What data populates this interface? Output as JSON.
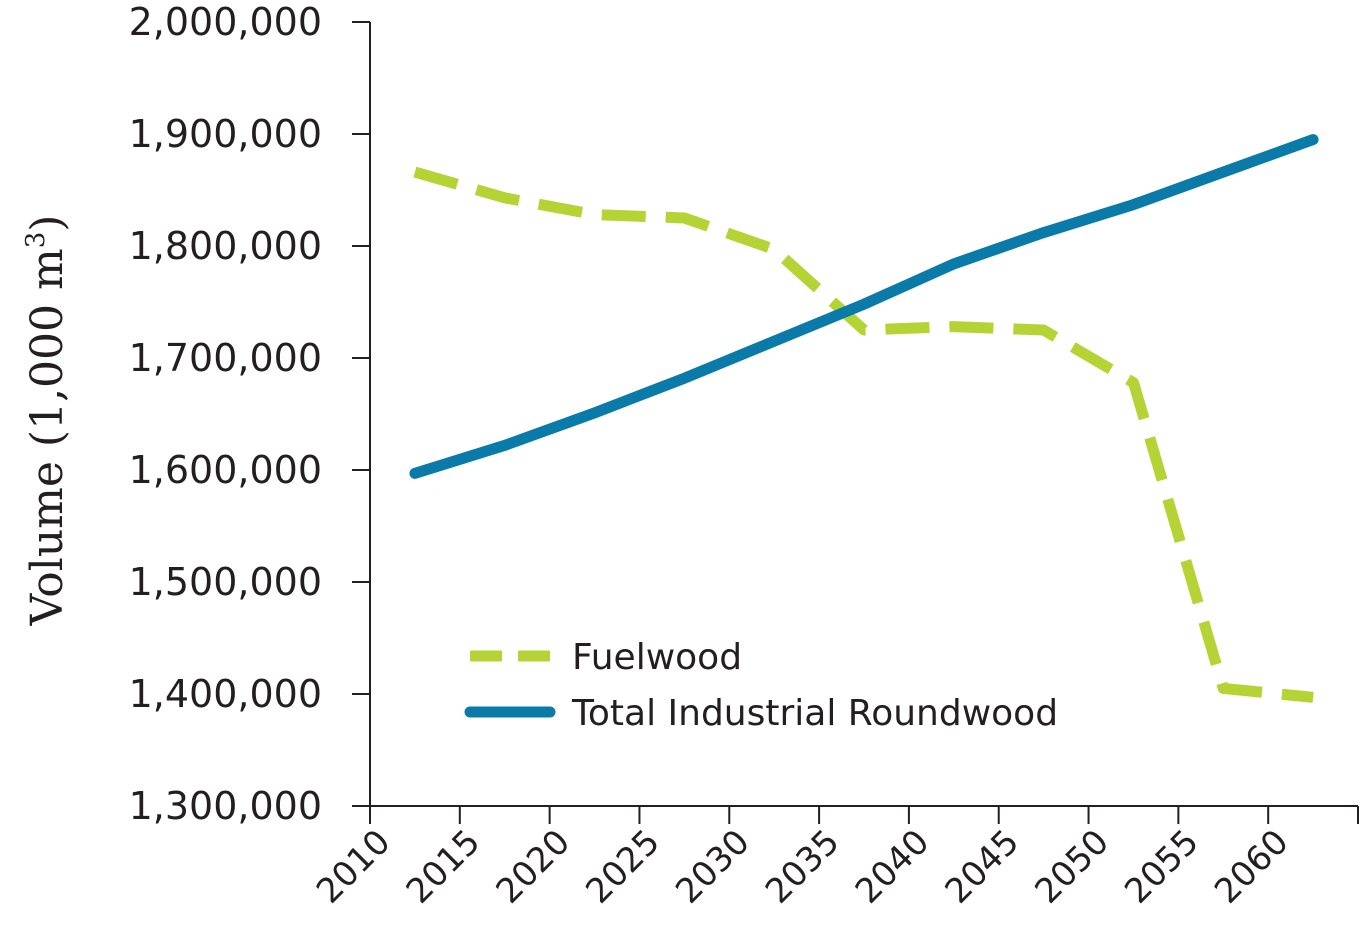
{
  "chart_data": {
    "type": "line",
    "ylabel": "Volume (1,000 m",
    "ylabel_superscript": "3",
    "ylabel_close": ")",
    "xlabel": "",
    "ylim": [
      1300000,
      2000000
    ],
    "y_ticks": [
      1300000,
      1400000,
      1500000,
      1600000,
      1700000,
      1800000,
      1900000,
      2000000
    ],
    "y_tick_labels": [
      "1,300,000",
      "1,400,000",
      "1,500,000",
      "1,600,000",
      "1,700,000",
      "1,800,000",
      "1,900,000",
      "2,000,000"
    ],
    "categories": [
      "2010",
      "2015",
      "2020",
      "2025",
      "2030",
      "2035",
      "2040",
      "2045",
      "2050",
      "2055",
      "2060"
    ],
    "grid": false,
    "legend_position": "bottom-left",
    "series": [
      {
        "name": "Fuelwood",
        "style": "dashed",
        "color": "#b5d335",
        "values": [
          1866000,
          1843000,
          1828000,
          1825000,
          1797000,
          1725000,
          1728000,
          1725000,
          1678000,
          1405000,
          1397000
        ]
      },
      {
        "name": "Total Industrial Roundwood",
        "style": "solid",
        "color": "#0a7aa8",
        "values": [
          1597000,
          1622000,
          1651000,
          1682000,
          1715000,
          1748000,
          1784000,
          1812000,
          1837000,
          1866000,
          1895000
        ]
      }
    ]
  }
}
